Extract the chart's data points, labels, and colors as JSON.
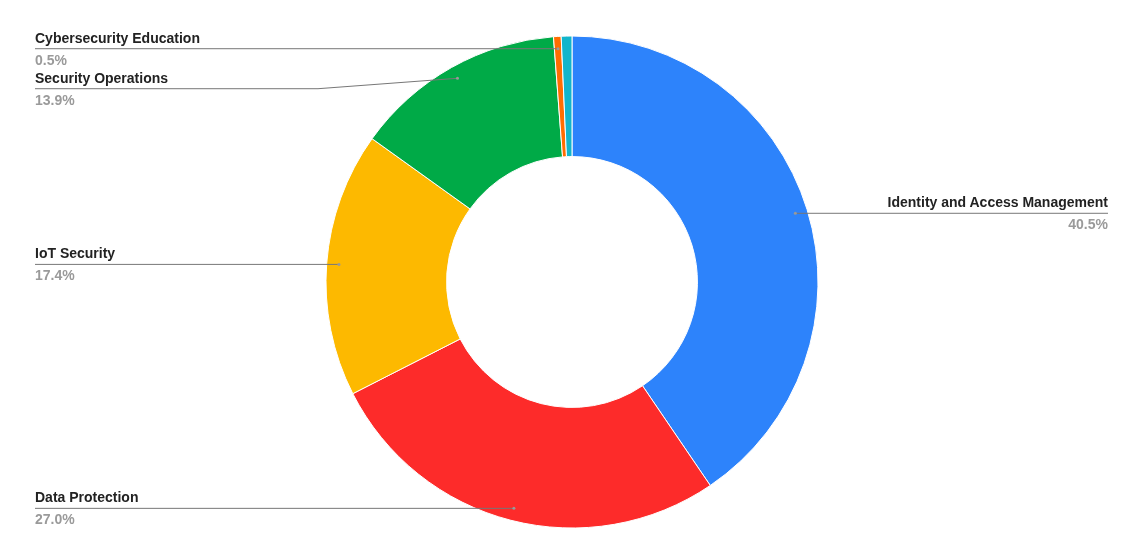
{
  "chart_data": {
    "type": "donut",
    "categories": [
      "Identity and Access Management",
      "Data Protection",
      "IoT Security",
      "Security Operations",
      "Cybersecurity Education",
      null
    ],
    "values": [
      40.5,
      27.0,
      17.4,
      13.9,
      0.5,
      0.7
    ],
    "colors": [
      "#2d83fb",
      "#fd2b2a",
      "#fdb900",
      "#00aa47",
      "#ff6d01",
      "#12b5cb"
    ],
    "value_labels": [
      "40.5%",
      "27.0%",
      "17.4%",
      "13.9%",
      "0.5%",
      null
    ]
  }
}
